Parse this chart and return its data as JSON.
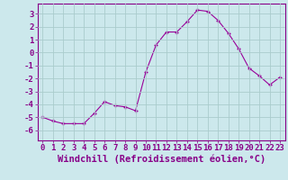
{
  "x": [
    0,
    1,
    2,
    3,
    4,
    5,
    6,
    7,
    8,
    9,
    10,
    11,
    12,
    13,
    14,
    15,
    16,
    17,
    18,
    19,
    20,
    21,
    22,
    23
  ],
  "y": [
    -5.0,
    -5.3,
    -5.5,
    -5.5,
    -5.5,
    -4.7,
    -3.8,
    -4.1,
    -4.2,
    -4.5,
    -1.5,
    0.6,
    1.6,
    1.6,
    2.4,
    3.3,
    3.2,
    2.5,
    1.5,
    0.3,
    -1.2,
    -1.8,
    -2.5,
    -1.9
  ],
  "line_color": "#990099",
  "marker": "P",
  "marker_size": 3,
  "bg_color": "#cce8ec",
  "grid_color": "#aacccc",
  "tick_color": "#880088",
  "xlabel": "Windchill (Refroidissement éolien,°C)",
  "ylim": [
    -6.8,
    3.8
  ],
  "xlim": [
    -0.5,
    23.5
  ],
  "yticks": [
    -6,
    -5,
    -4,
    -3,
    -2,
    -1,
    0,
    1,
    2,
    3
  ],
  "xtick_labels": [
    "0",
    "1",
    "2",
    "3",
    "4",
    "5",
    "6",
    "7",
    "8",
    "9",
    "10",
    "11",
    "12",
    "13",
    "14",
    "15",
    "16",
    "17",
    "18",
    "19",
    "20",
    "21",
    "22",
    "23"
  ],
  "font_size": 6.5,
  "xlabel_font_size": 7.5
}
